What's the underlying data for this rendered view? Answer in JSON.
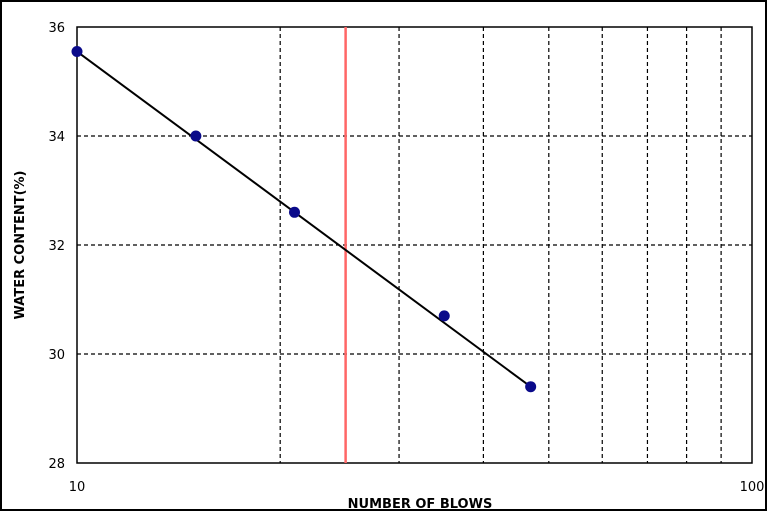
{
  "chart_data": {
    "type": "scatter",
    "title": "",
    "xlabel": "NUMBER OF BLOWS",
    "ylabel": "WATER CONTENT(%)",
    "x_scale": "log",
    "xlim": [
      10,
      100
    ],
    "ylim": [
      28,
      36
    ],
    "x_tick_labels": [
      "10",
      "100"
    ],
    "x_gridlines": [
      10,
      20,
      30,
      40,
      50,
      60,
      70,
      80,
      90,
      100
    ],
    "y_ticks": [
      28,
      30,
      32,
      34,
      36
    ],
    "y_tick_labels": [
      "28",
      "30",
      "32",
      "34",
      "36"
    ],
    "grid": "dashed",
    "points": [
      {
        "x": 10,
        "y": 35.55
      },
      {
        "x": 15,
        "y": 34.0
      },
      {
        "x": 21,
        "y": 32.6
      },
      {
        "x": 35,
        "y": 30.7
      },
      {
        "x": 47,
        "y": 29.4
      }
    ],
    "fit_line": {
      "x": [
        10,
        47
      ],
      "y": [
        35.55,
        29.4
      ]
    },
    "reference_line": {
      "x": 25
    },
    "colors": {
      "points": "#0a0a8a",
      "fit_line": "#000000",
      "reference_line": "#ff6666",
      "grid": "#000000"
    }
  }
}
